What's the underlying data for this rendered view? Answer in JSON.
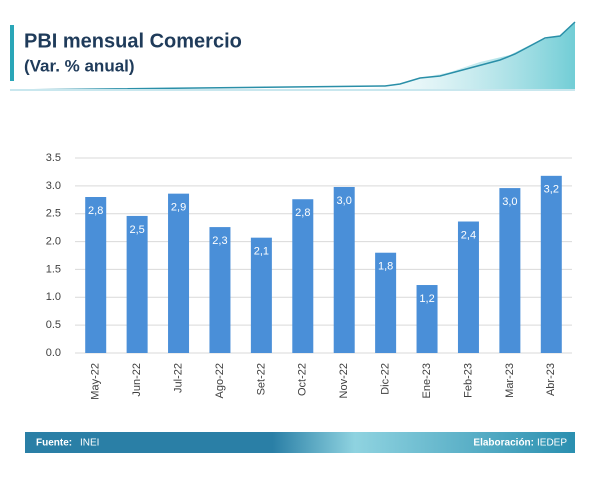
{
  "chart_data": {
    "type": "bar",
    "title": "PBI mensual Comercio",
    "subtitle": "(Var. % anual)",
    "categories": [
      "May-22",
      "Jun-22",
      "Jul-22",
      "Ago-22",
      "Set-22",
      "Oct-22",
      "Nov-22",
      "Dic-22",
      "Ene-23",
      "Feb-23",
      "Mar-23",
      "Abr-23"
    ],
    "values": [
      2.8,
      2.46,
      2.86,
      2.26,
      2.07,
      2.76,
      2.98,
      1.8,
      1.22,
      2.36,
      2.96,
      3.18
    ],
    "value_labels": [
      "2,8",
      "2,5",
      "2,9",
      "2,3",
      "2,1",
      "2,8",
      "3,0",
      "1,8",
      "1,2",
      "2,4",
      "3,0",
      "3,2"
    ],
    "color": "#4a8fd8",
    "ylim": [
      0,
      3.5
    ],
    "yticks": [
      {
        "value": 0,
        "label": "0.0"
      },
      {
        "value": 0.5,
        "label": "0.5"
      },
      {
        "value": 1,
        "label": "1.0"
      },
      {
        "value": 1.5,
        "label": "1.5"
      },
      {
        "value": 2,
        "label": "2.0"
      },
      {
        "value": 2.5,
        "label": "2.5"
      },
      {
        "value": 3,
        "label": "3.0"
      },
      {
        "value": 3.5,
        "label": "3.5"
      }
    ],
    "grid": true
  },
  "footer": {
    "source_label": "Fuente:",
    "source": "INEI",
    "credit_label": "Elaboración:",
    "credit": "IEDEP"
  }
}
